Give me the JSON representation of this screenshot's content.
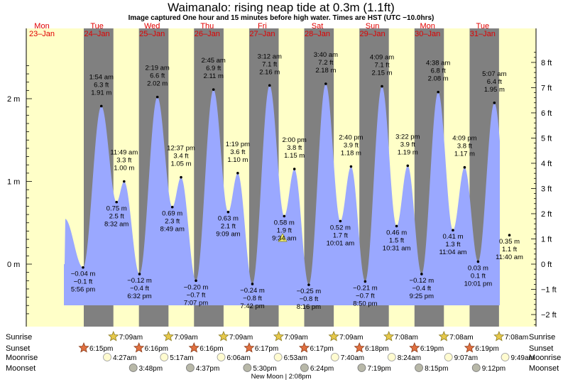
{
  "header": {
    "title": "Waimanalo: rising  neap tide at 0.3m (1.1ft)",
    "subtitle": "Image captured One hour and 15 minutes before high water. Times are HST (UTC −10.0hrs)"
  },
  "colors": {
    "day": "#ffffc8",
    "night": "#808080",
    "tide": "#9aa8ff",
    "date_text": "#e00000",
    "axis_text": "#000000"
  },
  "left_axis": {
    "unit": "m",
    "ticks": [
      "2 m",
      "1 m",
      "0 m"
    ]
  },
  "right_axis": {
    "unit": "ft",
    "ticks": [
      "8 ft",
      "7 ft",
      "6 ft",
      "5 ft",
      "4 ft",
      "3 ft",
      "2 ft",
      "1 ft",
      "0 ft",
      "−1 ft",
      "−2 ft"
    ]
  },
  "days": [
    {
      "dow": "Mon",
      "date": "23–Jan"
    },
    {
      "dow": "Tue",
      "date": "24–Jan"
    },
    {
      "dow": "Wed",
      "date": "25–Jan"
    },
    {
      "dow": "Thu",
      "date": "26–Jan"
    },
    {
      "dow": "Fri",
      "date": "27–Jan"
    },
    {
      "dow": "Sat",
      "date": "28–Jan"
    },
    {
      "dow": "Sun",
      "date": "29–Jan"
    },
    {
      "dow": "Mon",
      "date": "30–Jan"
    },
    {
      "dow": "Tue",
      "date": "31–Jan"
    }
  ],
  "chart_data": {
    "type": "area",
    "title": "Waimanalo: rising  neap tide at 0.3m (1.1ft)",
    "ylabel": "m",
    "ylim_m": [
      -0.6,
      2.4
    ],
    "right_ylim_ft": [
      -2,
      8
    ],
    "current_level_m": 0.3,
    "current_level_ft": 1.1,
    "tide_events": [
      {
        "day": 0,
        "kind": "low",
        "time": "5:56 pm",
        "m": "−0.04 m",
        "ft": "−0.1 ft",
        "value_m": -0.04
      },
      {
        "day": 1,
        "kind": "high",
        "time": "1:54 am",
        "m": "1.91 m",
        "ft": "6.3 ft",
        "value_m": 1.91
      },
      {
        "day": 1,
        "kind": "low",
        "time": "8:32 am",
        "m": "0.75 m",
        "ft": "2.5 ft",
        "value_m": 0.75
      },
      {
        "day": 1,
        "kind": "high",
        "time": "11:49 am",
        "m": "1.00 m",
        "ft": "3.3 ft",
        "value_m": 1.0
      },
      {
        "day": 1,
        "kind": "low",
        "time": "6:32 pm",
        "m": "−0.12 m",
        "ft": "−0.4 ft",
        "value_m": -0.12
      },
      {
        "day": 2,
        "kind": "high",
        "time": "2:19 am",
        "m": "2.02 m",
        "ft": "6.6 ft",
        "value_m": 2.02
      },
      {
        "day": 2,
        "kind": "low",
        "time": "8:49 am",
        "m": "0.69 m",
        "ft": "2.3 ft",
        "value_m": 0.69
      },
      {
        "day": 2,
        "kind": "high",
        "time": "12:37 pm",
        "m": "1.05 m",
        "ft": "3.4 ft",
        "value_m": 1.05
      },
      {
        "day": 2,
        "kind": "low",
        "time": "7:07 pm",
        "m": "−0.20 m",
        "ft": "−0.7 ft",
        "value_m": -0.2
      },
      {
        "day": 3,
        "kind": "high",
        "time": "2:45 am",
        "m": "2.11 m",
        "ft": "6.9 ft",
        "value_m": 2.11
      },
      {
        "day": 3,
        "kind": "low",
        "time": "9:09 am",
        "m": "0.63 m",
        "ft": "2.1 ft",
        "value_m": 0.63
      },
      {
        "day": 3,
        "kind": "high",
        "time": "1:19 pm",
        "m": "1.10 m",
        "ft": "3.6 ft",
        "value_m": 1.1
      },
      {
        "day": 3,
        "kind": "low",
        "time": "7:42 pm",
        "m": "−0.24 m",
        "ft": "−0.8 ft",
        "value_m": -0.24
      },
      {
        "day": 4,
        "kind": "high",
        "time": "3:12 am",
        "m": "2.16 m",
        "ft": "7.1 ft",
        "value_m": 2.16
      },
      {
        "day": 4,
        "kind": "low",
        "time": "9:34 am",
        "m": "0.58 m",
        "ft": "1.9 ft",
        "value_m": 0.58
      },
      {
        "day": 4,
        "kind": "high",
        "time": "2:00 pm",
        "m": "1.15 m",
        "ft": "3.8 ft",
        "value_m": 1.15
      },
      {
        "day": 4,
        "kind": "low",
        "time": "8:16 pm",
        "m": "−0.25 m",
        "ft": "−0.8 ft",
        "value_m": -0.25
      },
      {
        "day": 5,
        "kind": "high",
        "time": "3:40 am",
        "m": "2.18 m",
        "ft": "7.2 ft",
        "value_m": 2.18
      },
      {
        "day": 5,
        "kind": "low",
        "time": "10:01 am",
        "m": "0.52 m",
        "ft": "1.7 ft",
        "value_m": 0.52
      },
      {
        "day": 5,
        "kind": "high",
        "time": "2:40 pm",
        "m": "1.18 m",
        "ft": "3.9 ft",
        "value_m": 1.18
      },
      {
        "day": 5,
        "kind": "low",
        "time": "8:50 pm",
        "m": "−0.21 m",
        "ft": "−0.7 ft",
        "value_m": -0.21
      },
      {
        "day": 6,
        "kind": "high",
        "time": "4:09 am",
        "m": "2.15 m",
        "ft": "7.1 ft",
        "value_m": 2.15
      },
      {
        "day": 6,
        "kind": "low",
        "time": "10:31 am",
        "m": "0.46 m",
        "ft": "1.5 ft",
        "value_m": 0.46
      },
      {
        "day": 6,
        "kind": "high",
        "time": "3:22 pm",
        "m": "1.19 m",
        "ft": "3.9 ft",
        "value_m": 1.19
      },
      {
        "day": 6,
        "kind": "low",
        "time": "9:25 pm",
        "m": "−0.12 m",
        "ft": "−0.4 ft",
        "value_m": -0.12
      },
      {
        "day": 7,
        "kind": "high",
        "time": "4:38 am",
        "m": "2.08 m",
        "ft": "6.8 ft",
        "value_m": 2.08
      },
      {
        "day": 7,
        "kind": "low",
        "time": "11:04 am",
        "m": "0.41 m",
        "ft": "1.3 ft",
        "value_m": 0.41
      },
      {
        "day": 7,
        "kind": "high",
        "time": "4:09 pm",
        "m": "1.17 m",
        "ft": "3.8 ft",
        "value_m": 1.17
      },
      {
        "day": 7,
        "kind": "low",
        "time": "10:01 pm",
        "m": "0.03 m",
        "ft": "0.1 ft",
        "value_m": 0.03
      },
      {
        "day": 8,
        "kind": "high",
        "time": "5:07 am",
        "m": "1.95 m",
        "ft": "6.4 ft",
        "value_m": 1.95
      },
      {
        "day": 8,
        "kind": "low",
        "time": "11:40 am",
        "m": "0.35 m",
        "ft": "1.1 ft",
        "value_m": 0.35
      }
    ]
  },
  "sun_moon": {
    "row_labels": [
      "Sunrise",
      "Sunset",
      "Moonrise",
      "Moonset"
    ],
    "sunrise": [
      {
        "day": 1,
        "time": "7:09am"
      },
      {
        "day": 2,
        "time": "7:09am"
      },
      {
        "day": 3,
        "time": "7:09am"
      },
      {
        "day": 4,
        "time": "7:09am"
      },
      {
        "day": 5,
        "time": "7:09am"
      },
      {
        "day": 6,
        "time": "7:08am"
      },
      {
        "day": 7,
        "time": "7:08am"
      },
      {
        "day": 8,
        "time": "7:08am"
      }
    ],
    "sunset": [
      {
        "day": 0,
        "time": "6:15pm"
      },
      {
        "day": 1,
        "time": "6:16pm"
      },
      {
        "day": 2,
        "time": "6:16pm"
      },
      {
        "day": 3,
        "time": "6:17pm"
      },
      {
        "day": 4,
        "time": "6:17pm"
      },
      {
        "day": 5,
        "time": "6:18pm"
      },
      {
        "day": 6,
        "time": "6:19pm"
      },
      {
        "day": 7,
        "time": "6:19pm"
      }
    ],
    "moonrise": [
      {
        "day": 1,
        "time": "4:27am"
      },
      {
        "day": 2,
        "time": "5:17am"
      },
      {
        "day": 3,
        "time": "6:06am"
      },
      {
        "day": 4,
        "time": "6:53am"
      },
      {
        "day": 5,
        "time": "7:40am"
      },
      {
        "day": 6,
        "time": "8:24am"
      },
      {
        "day": 7,
        "time": "9:07am"
      },
      {
        "day": 8,
        "time": "9:49am"
      }
    ],
    "moonset": [
      {
        "day": 1,
        "time": "3:48pm"
      },
      {
        "day": 2,
        "time": "4:37pm"
      },
      {
        "day": 3,
        "time": "5:30pm"
      },
      {
        "day": 4,
        "time": "6:24pm"
      },
      {
        "day": 5,
        "time": "7:19pm"
      },
      {
        "day": 6,
        "time": "8:15pm"
      },
      {
        "day": 7,
        "time": "9:12pm"
      }
    ],
    "moon_phase_note": "New Moon | 2:08pm"
  }
}
